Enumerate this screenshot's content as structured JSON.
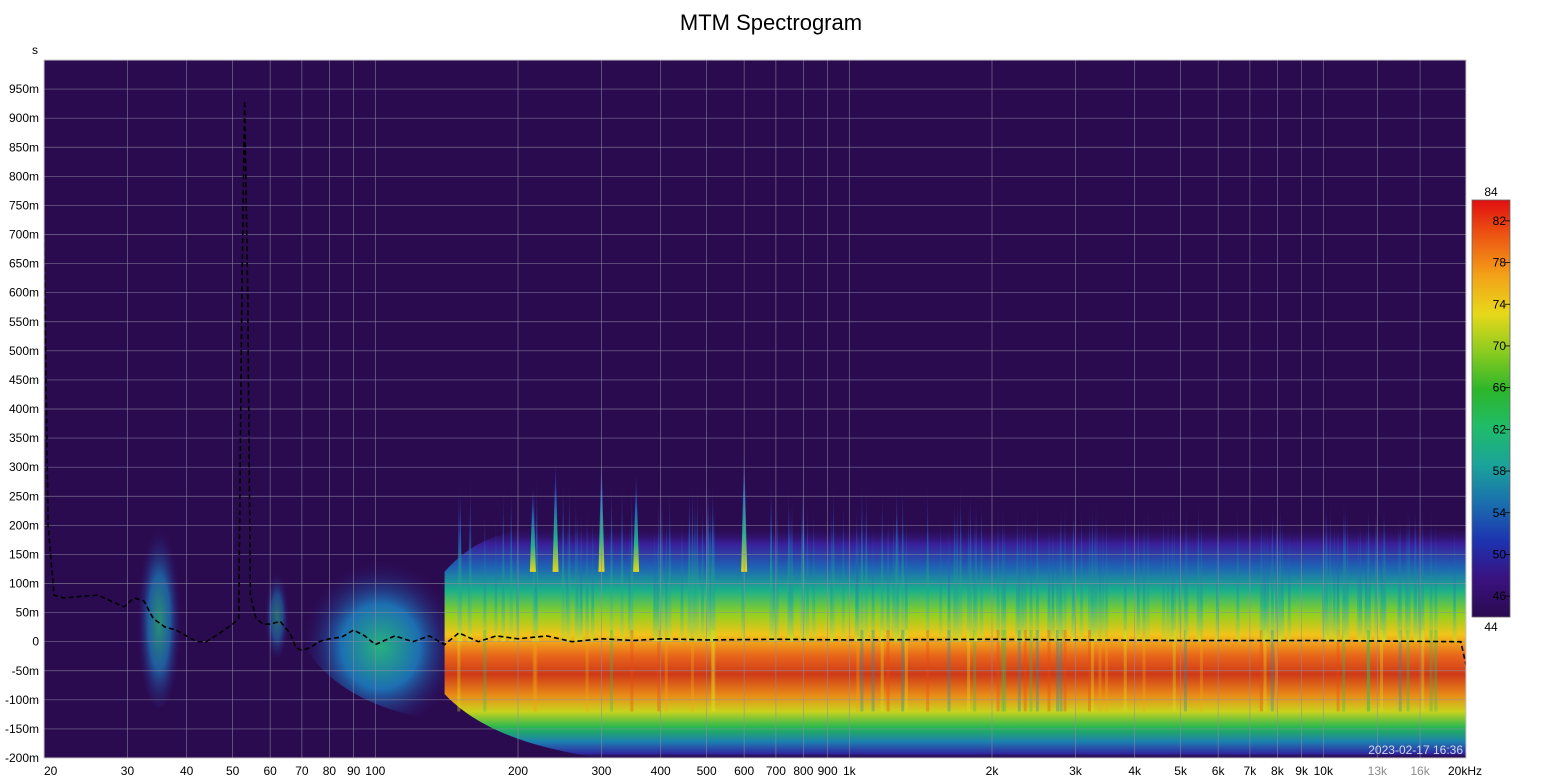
{
  "chart_data": {
    "type": "heatmap",
    "title": "MTM Spectrogram",
    "timestamp": "2023-02-17 16:36",
    "y_unit": "s",
    "x_unit": "Hz",
    "x_scale": "log",
    "xlim": [
      20,
      20000
    ],
    "ylim": [
      -0.2,
      1.0
    ],
    "grid": true,
    "colorbar_location": "right",
    "x_ticks": [
      {
        "v": 20,
        "t": "20"
      },
      {
        "v": 30,
        "t": "30"
      },
      {
        "v": 40,
        "t": "40"
      },
      {
        "v": 50,
        "t": "50"
      },
      {
        "v": 60,
        "t": "60"
      },
      {
        "v": 70,
        "t": "70"
      },
      {
        "v": 80,
        "t": "80"
      },
      {
        "v": 90,
        "t": "90"
      },
      {
        "v": 100,
        "t": "100"
      },
      {
        "v": 200,
        "t": "200"
      },
      {
        "v": 300,
        "t": "300"
      },
      {
        "v": 400,
        "t": "400"
      },
      {
        "v": 500,
        "t": "500"
      },
      {
        "v": 600,
        "t": "600"
      },
      {
        "v": 700,
        "t": "700"
      },
      {
        "v": 800,
        "t": "800"
      },
      {
        "v": 900,
        "t": "900"
      },
      {
        "v": 1000,
        "t": "1k"
      },
      {
        "v": 2000,
        "t": "2k"
      },
      {
        "v": 3000,
        "t": "3k"
      },
      {
        "v": 4000,
        "t": "4k"
      },
      {
        "v": 5000,
        "t": "5k"
      },
      {
        "v": 6000,
        "t": "6k"
      },
      {
        "v": 7000,
        "t": "7k"
      },
      {
        "v": 8000,
        "t": "8k"
      },
      {
        "v": 9000,
        "t": "9k"
      },
      {
        "v": 10000,
        "t": "10k"
      },
      {
        "v": 13000,
        "t": "13k",
        "dim": true
      },
      {
        "v": 16000,
        "t": "16k",
        "dim": true
      },
      {
        "v": 20000,
        "t": "20kHz"
      }
    ],
    "y_ticks": [
      {
        "v": 0.95,
        "t": "950m"
      },
      {
        "v": 0.9,
        "t": "900m"
      },
      {
        "v": 0.85,
        "t": "850m"
      },
      {
        "v": 0.8,
        "t": "800m"
      },
      {
        "v": 0.75,
        "t": "750m"
      },
      {
        "v": 0.7,
        "t": "700m"
      },
      {
        "v": 0.65,
        "t": "650m"
      },
      {
        "v": 0.6,
        "t": "600m"
      },
      {
        "v": 0.55,
        "t": "550m"
      },
      {
        "v": 0.5,
        "t": "500m"
      },
      {
        "v": 0.45,
        "t": "450m"
      },
      {
        "v": 0.4,
        "t": "400m"
      },
      {
        "v": 0.35,
        "t": "350m"
      },
      {
        "v": 0.3,
        "t": "300m"
      },
      {
        "v": 0.25,
        "t": "250m"
      },
      {
        "v": 0.2,
        "t": "200m"
      },
      {
        "v": 0.15,
        "t": "150m"
      },
      {
        "v": 0.1,
        "t": "100m"
      },
      {
        "v": 0.05,
        "t": "50m"
      },
      {
        "v": 0.0,
        "t": "0"
      },
      {
        "v": -0.05,
        "t": "-50m"
      },
      {
        "v": -0.1,
        "t": "-100m"
      },
      {
        "v": -0.15,
        "t": "-150m"
      },
      {
        "v": -0.2,
        "t": "-200m"
      }
    ],
    "colorbar": {
      "range": [
        44,
        84
      ],
      "ticks": [
        82,
        78,
        74,
        70,
        66,
        62,
        58,
        54,
        50,
        46
      ],
      "end_labels": [
        "84",
        "44"
      ],
      "stops": [
        "#2a0a50",
        "#3a1280",
        "#1d33b0",
        "#1a6fae",
        "#1ba39a",
        "#1fbc6a",
        "#2db62a",
        "#8ccc1f",
        "#e7d81a",
        "#f3a218",
        "#ee5a12",
        "#e01010"
      ]
    },
    "peak_time_series": {
      "name": "",
      "points": [
        [
          20,
          0.7
        ],
        [
          20.4,
          0.2
        ],
        [
          21,
          0.08
        ],
        [
          22,
          0.075
        ],
        [
          24,
          0.078
        ],
        [
          26,
          0.08
        ],
        [
          28,
          0.068
        ],
        [
          29.5,
          0.06
        ],
        [
          31,
          0.075
        ],
        [
          32.5,
          0.07
        ],
        [
          34,
          0.04
        ],
        [
          36,
          0.025
        ],
        [
          38,
          0.02
        ],
        [
          40,
          0.01
        ],
        [
          42,
          0.0
        ],
        [
          44,
          0.0
        ],
        [
          46,
          0.01
        ],
        [
          48,
          0.02
        ],
        [
          50,
          0.03
        ],
        [
          51.5,
          0.04
        ],
        [
          52.3,
          0.6
        ],
        [
          53,
          0.93
        ],
        [
          53.8,
          0.6
        ],
        [
          54.5,
          0.08
        ],
        [
          56,
          0.04
        ],
        [
          58,
          0.03
        ],
        [
          60,
          0.03
        ],
        [
          63,
          0.035
        ],
        [
          66,
          0.015
        ],
        [
          68,
          -0.01
        ],
        [
          70,
          -0.015
        ],
        [
          73,
          -0.01
        ],
        [
          76,
          0.0
        ],
        [
          80,
          0.005
        ],
        [
          85,
          0.008
        ],
        [
          90,
          0.02
        ],
        [
          95,
          0.01
        ],
        [
          100,
          -0.005
        ],
        [
          110,
          0.01
        ],
        [
          120,
          0.0
        ],
        [
          130,
          0.01
        ],
        [
          140,
          -0.005
        ],
        [
          150,
          0.015
        ],
        [
          165,
          0.0
        ],
        [
          180,
          0.01
        ],
        [
          200,
          0.005
        ],
        [
          230,
          0.01
        ],
        [
          260,
          0.0
        ],
        [
          300,
          0.005
        ],
        [
          350,
          0.002
        ],
        [
          400,
          0.005
        ],
        [
          500,
          0.003
        ],
        [
          700,
          0.004
        ],
        [
          1000,
          0.003
        ],
        [
          2000,
          0.004
        ],
        [
          5000,
          0.002
        ],
        [
          10000,
          0.002
        ],
        [
          19500,
          0.0
        ],
        [
          20000,
          -0.04
        ]
      ]
    }
  }
}
